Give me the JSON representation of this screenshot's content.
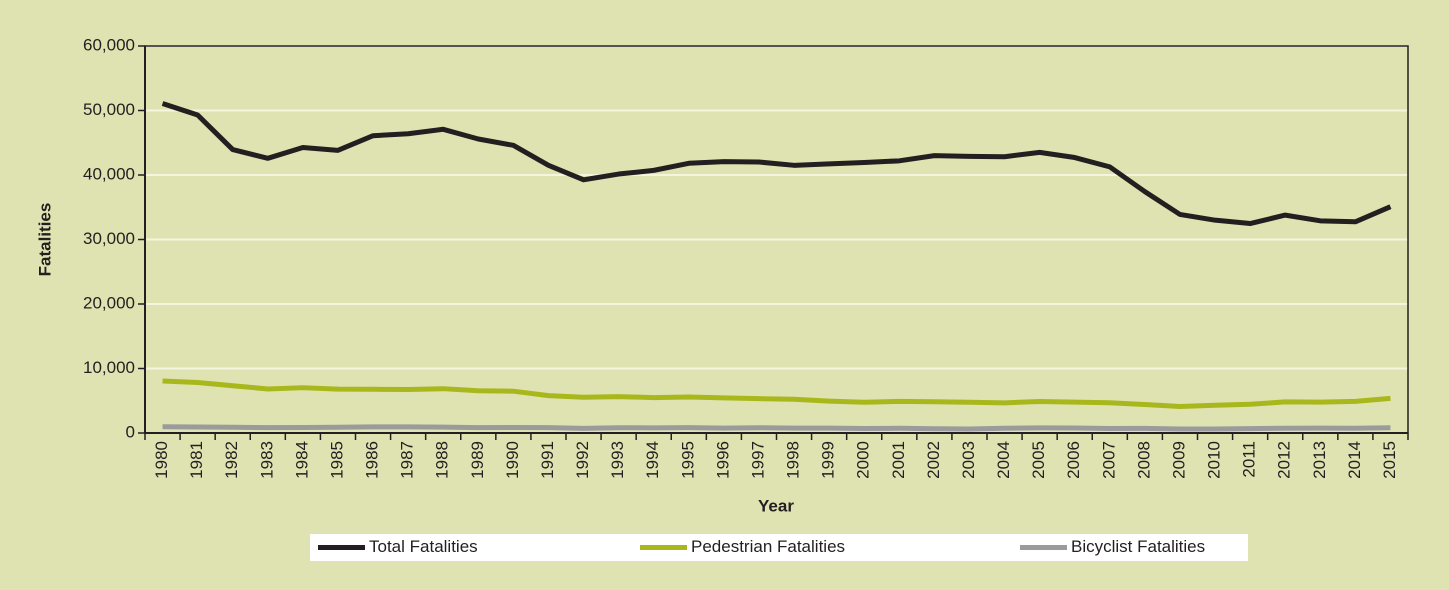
{
  "chart_data": {
    "type": "line",
    "x_label": "Year",
    "y_label": "Fatalities",
    "categories": [
      "1980",
      "1981",
      "1982",
      "1983",
      "1984",
      "1985",
      "1986",
      "1987",
      "1988",
      "1989",
      "1990",
      "1991",
      "1992",
      "1993",
      "1994",
      "1995",
      "1996",
      "1997",
      "1998",
      "1999",
      "2000",
      "2001",
      "2002",
      "2003",
      "2004",
      "2005",
      "2006",
      "2007",
      "2008",
      "2009",
      "2010",
      "2011",
      "2012",
      "2013",
      "2014",
      "2015"
    ],
    "series": [
      {
        "name": "Total Fatalities",
        "color": "#231f20",
        "values": [
          51091,
          49301,
          43945,
          42589,
          44257,
          43825,
          46087,
          46390,
          47087,
          45582,
          44599,
          41508,
          39250,
          40150,
          40716,
          41817,
          42065,
          42013,
          41501,
          41717,
          41945,
          42196,
          43005,
          42884,
          42836,
          43510,
          42708,
          41259,
          37423,
          33883,
          32999,
          32479,
          33782,
          32894,
          32744,
          35092
        ]
      },
      {
        "name": "Pedestrian Fatalities",
        "color": "#a8b81c",
        "values": [
          8070,
          7837,
          7331,
          6826,
          7025,
          6808,
          6779,
          6745,
          6870,
          6556,
          6482,
          5801,
          5549,
          5649,
          5489,
          5584,
          5449,
          5321,
          5228,
          4939,
          4763,
          4901,
          4851,
          4774,
          4675,
          4892,
          4795,
          4699,
          4414,
          4109,
          4302,
          4457,
          4818,
          4779,
          4910,
          5376
        ]
      },
      {
        "name": "Bicyclist Fatalities",
        "color": "#9b9b9b",
        "values": [
          965,
          936,
          883,
          839,
          849,
          890,
          941,
          948,
          911,
          832,
          859,
          843,
          723,
          816,
          802,
          833,
          765,
          814,
          760,
          754,
          693,
          732,
          665,
          629,
          727,
          786,
          772,
          701,
          718,
          628,
          623,
          682,
          730,
          749,
          729,
          818
        ]
      }
    ],
    "ylim": [
      0,
      60000
    ],
    "yticks": [
      0,
      {
        "value": 10000,
        "label": "10,000"
      },
      {
        "value": 20000,
        "label": "20,000"
      },
      {
        "value": 30000,
        "label": "30,000"
      },
      {
        "value": 40000,
        "label": "40,000"
      },
      {
        "value": 50000,
        "label": "50,000"
      },
      {
        "value": 60000,
        "label": "60,000"
      }
    ],
    "grid": true,
    "legend": "bottom"
  }
}
